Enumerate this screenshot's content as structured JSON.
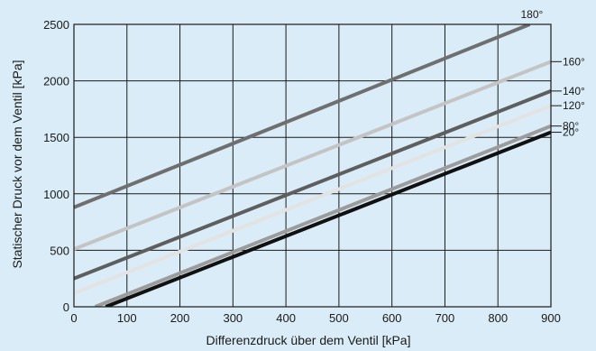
{
  "chart_data": {
    "type": "line",
    "title": "",
    "xlabel": "Differenzdruck über dem Ventil [kPa]",
    "ylabel": "Statischer Druck vor dem Ventil [kPa]",
    "xlim": [
      0,
      900
    ],
    "ylim": [
      0,
      2500
    ],
    "xticks": [
      0,
      100,
      200,
      300,
      400,
      500,
      600,
      700,
      800,
      900
    ],
    "yticks": [
      0,
      500,
      1000,
      1500,
      2000,
      2500
    ],
    "grid": true,
    "background_color": "#d9ecf7",
    "series": [
      {
        "name": "180°",
        "color": "#6f6f6f",
        "x": [
          0,
          860
        ],
        "y": [
          880,
          2500
        ]
      },
      {
        "name": "160°",
        "color": "#c4c4c4",
        "x": [
          0,
          900
        ],
        "y": [
          510,
          2170
        ]
      },
      {
        "name": "140°",
        "color": "#5e5e5e",
        "x": [
          0,
          900
        ],
        "y": [
          250,
          1910
        ]
      },
      {
        "name": "120°",
        "color": "#e3e3e3",
        "x": [
          0,
          900
        ],
        "y": [
          120,
          1780
        ]
      },
      {
        "name": "80°",
        "color": "#9c9c9c",
        "x": [
          40,
          900
        ],
        "y": [
          0,
          1600
        ]
      },
      {
        "name": "20°",
        "color": "#111111",
        "x": [
          60,
          900
        ],
        "y": [
          0,
          1545
        ]
      }
    ]
  }
}
